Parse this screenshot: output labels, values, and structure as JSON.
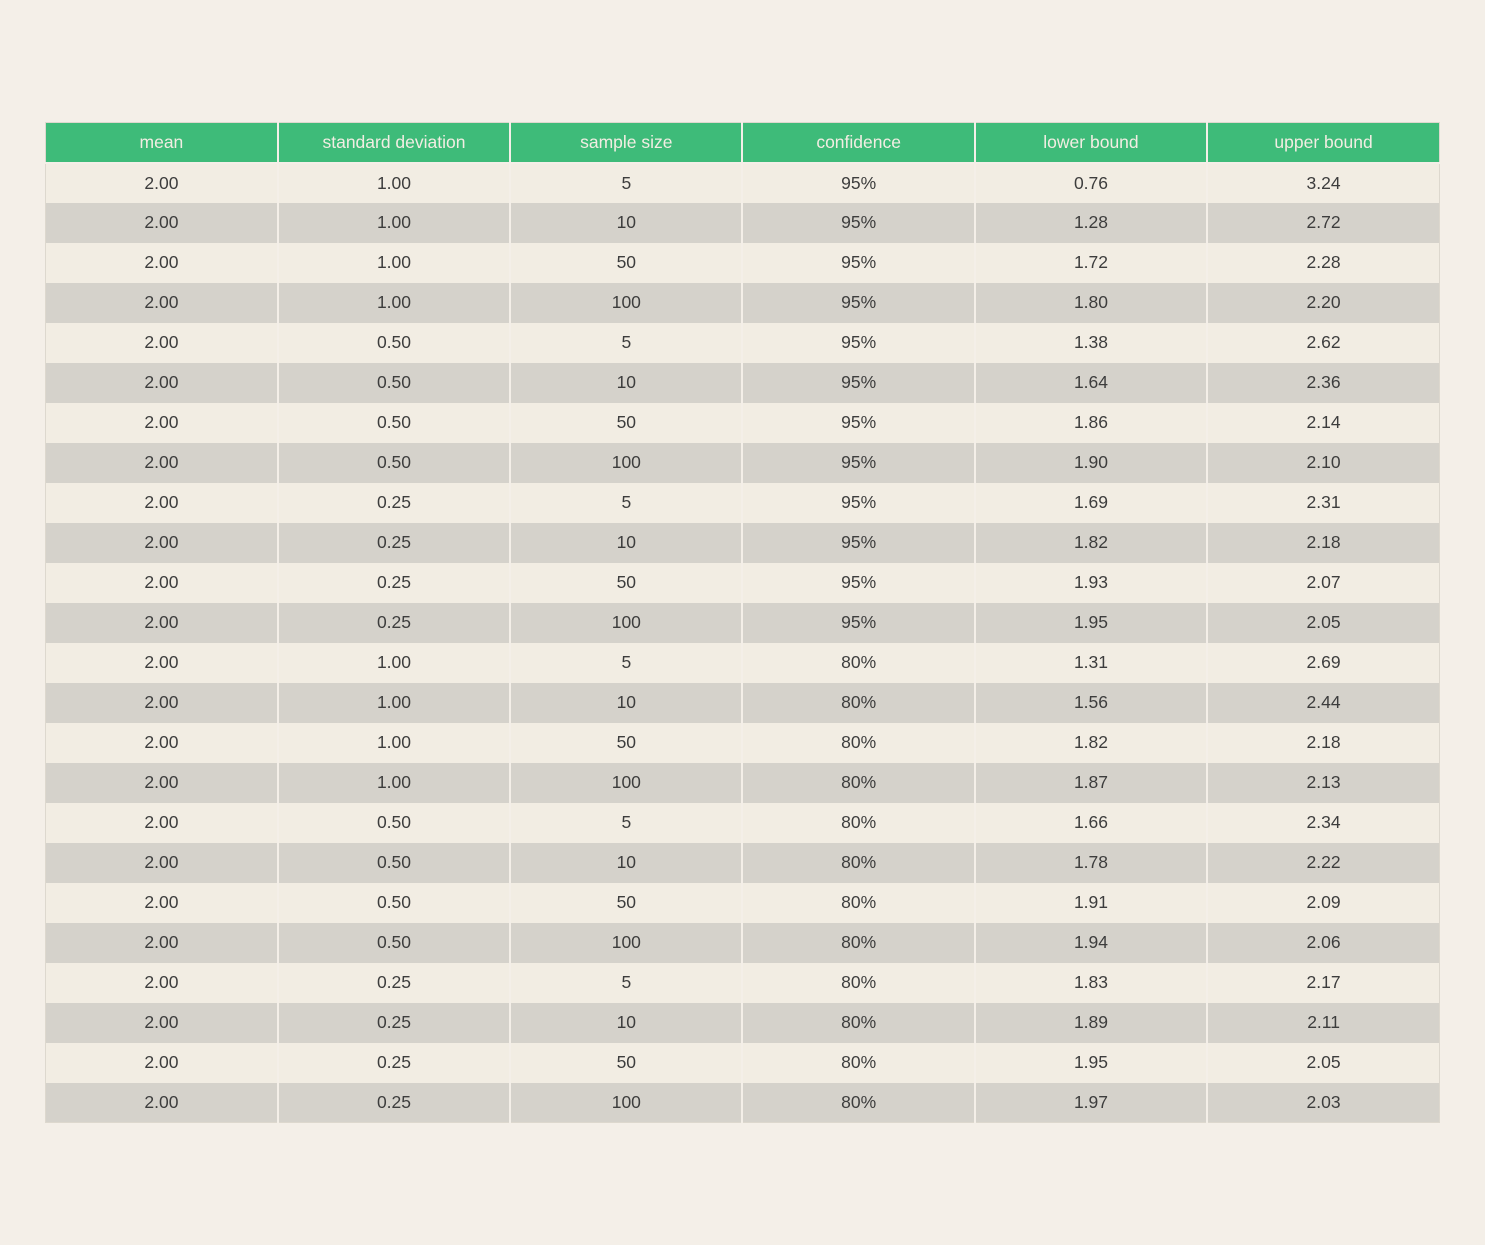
{
  "colors": {
    "page_bg": "#f4efe8",
    "header_bg": "#3ebb79",
    "header_text": "#f2ede3",
    "row_light": "#f2ede3",
    "row_dark": "#d5d2cb",
    "cell_text": "#3d3d3d"
  },
  "chart_data": {
    "type": "table",
    "columns": [
      "mean",
      "standard deviation",
      "sample size",
      "confidence",
      "lower bound",
      "upper bound"
    ],
    "rows": [
      [
        "2.00",
        "1.00",
        "5",
        "95%",
        "0.76",
        "3.24"
      ],
      [
        "2.00",
        "1.00",
        "10",
        "95%",
        "1.28",
        "2.72"
      ],
      [
        "2.00",
        "1.00",
        "50",
        "95%",
        "1.72",
        "2.28"
      ],
      [
        "2.00",
        "1.00",
        "100",
        "95%",
        "1.80",
        "2.20"
      ],
      [
        "2.00",
        "0.50",
        "5",
        "95%",
        "1.38",
        "2.62"
      ],
      [
        "2.00",
        "0.50",
        "10",
        "95%",
        "1.64",
        "2.36"
      ],
      [
        "2.00",
        "0.50",
        "50",
        "95%",
        "1.86",
        "2.14"
      ],
      [
        "2.00",
        "0.50",
        "100",
        "95%",
        "1.90",
        "2.10"
      ],
      [
        "2.00",
        "0.25",
        "5",
        "95%",
        "1.69",
        "2.31"
      ],
      [
        "2.00",
        "0.25",
        "10",
        "95%",
        "1.82",
        "2.18"
      ],
      [
        "2.00",
        "0.25",
        "50",
        "95%",
        "1.93",
        "2.07"
      ],
      [
        "2.00",
        "0.25",
        "100",
        "95%",
        "1.95",
        "2.05"
      ],
      [
        "2.00",
        "1.00",
        "5",
        "80%",
        "1.31",
        "2.69"
      ],
      [
        "2.00",
        "1.00",
        "10",
        "80%",
        "1.56",
        "2.44"
      ],
      [
        "2.00",
        "1.00",
        "50",
        "80%",
        "1.82",
        "2.18"
      ],
      [
        "2.00",
        "1.00",
        "100",
        "80%",
        "1.87",
        "2.13"
      ],
      [
        "2.00",
        "0.50",
        "5",
        "80%",
        "1.66",
        "2.34"
      ],
      [
        "2.00",
        "0.50",
        "10",
        "80%",
        "1.78",
        "2.22"
      ],
      [
        "2.00",
        "0.50",
        "50",
        "80%",
        "1.91",
        "2.09"
      ],
      [
        "2.00",
        "0.50",
        "100",
        "80%",
        "1.94",
        "2.06"
      ],
      [
        "2.00",
        "0.25",
        "5",
        "80%",
        "1.83",
        "2.17"
      ],
      [
        "2.00",
        "0.25",
        "10",
        "80%",
        "1.89",
        "2.11"
      ],
      [
        "2.00",
        "0.25",
        "50",
        "80%",
        "1.95",
        "2.05"
      ],
      [
        "2.00",
        "0.25",
        "100",
        "80%",
        "1.97",
        "2.03"
      ]
    ]
  }
}
